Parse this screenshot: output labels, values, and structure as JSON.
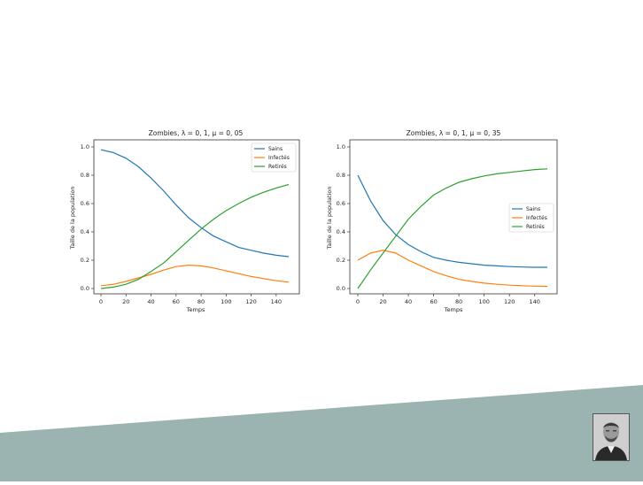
{
  "colors": {
    "band": "#9bb3b1",
    "sains": "#1f77b4",
    "infectes": "#ff7f0e",
    "retires": "#2ca02c"
  },
  "chart_data": [
    {
      "type": "line",
      "title": "Zombies, λ = 0, 1, μ = 0, 05",
      "xlabel": "Temps",
      "ylabel": "Taille de la population",
      "xlim": [
        0,
        150
      ],
      "ylim": [
        0,
        1.0
      ],
      "xticks": [
        "0",
        "20",
        "40",
        "60",
        "80",
        "100",
        "120",
        "140"
      ],
      "yticks": [
        "0.0",
        "0.2",
        "0.4",
        "0.6",
        "0.8",
        "1.0"
      ],
      "legend_position": "top-right",
      "grid": false,
      "x": [
        0,
        10,
        20,
        30,
        40,
        50,
        60,
        70,
        80,
        90,
        100,
        110,
        120,
        130,
        140,
        150
      ],
      "series": [
        {
          "name": "Sains",
          "values": [
            0.98,
            0.96,
            0.92,
            0.86,
            0.78,
            0.69,
            0.59,
            0.5,
            0.43,
            0.37,
            0.33,
            0.29,
            0.27,
            0.25,
            0.235,
            0.225
          ]
        },
        {
          "name": "Infectés",
          "values": [
            0.02,
            0.03,
            0.05,
            0.075,
            0.1,
            0.13,
            0.155,
            0.165,
            0.16,
            0.145,
            0.125,
            0.105,
            0.085,
            0.07,
            0.055,
            0.045
          ]
        },
        {
          "name": "Retirés",
          "values": [
            0.0,
            0.01,
            0.03,
            0.065,
            0.12,
            0.18,
            0.26,
            0.34,
            0.42,
            0.49,
            0.55,
            0.6,
            0.645,
            0.68,
            0.71,
            0.735
          ]
        }
      ]
    },
    {
      "type": "line",
      "title": "Zombies, λ = 0, 1, μ = 0, 35",
      "xlabel": "Temps",
      "ylabel": "Taille de la population",
      "xlim": [
        0,
        150
      ],
      "ylim": [
        0,
        1.0
      ],
      "xticks": [
        "0",
        "20",
        "40",
        "60",
        "80",
        "100",
        "120",
        "140"
      ],
      "yticks": [
        "0.0",
        "0.2",
        "0.4",
        "0.6",
        "0.8",
        "1.0"
      ],
      "legend_position": "center-right",
      "grid": false,
      "x": [
        0,
        10,
        20,
        30,
        40,
        50,
        60,
        70,
        80,
        90,
        100,
        110,
        120,
        130,
        140,
        150
      ],
      "series": [
        {
          "name": "Sains",
          "values": [
            0.8,
            0.62,
            0.48,
            0.38,
            0.31,
            0.26,
            0.22,
            0.2,
            0.185,
            0.175,
            0.165,
            0.16,
            0.155,
            0.152,
            0.15,
            0.15
          ]
        },
        {
          "name": "Infectés",
          "values": [
            0.2,
            0.25,
            0.27,
            0.25,
            0.2,
            0.16,
            0.12,
            0.09,
            0.065,
            0.05,
            0.038,
            0.03,
            0.024,
            0.02,
            0.017,
            0.015
          ]
        },
        {
          "name": "Retirés",
          "values": [
            0.0,
            0.13,
            0.25,
            0.37,
            0.49,
            0.58,
            0.66,
            0.71,
            0.75,
            0.775,
            0.795,
            0.81,
            0.82,
            0.83,
            0.84,
            0.845
          ]
        }
      ]
    }
  ]
}
